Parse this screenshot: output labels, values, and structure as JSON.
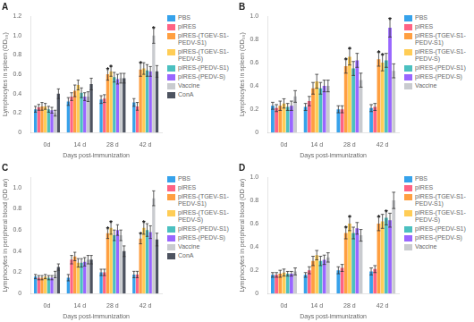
{
  "chart_data": [
    {
      "type": "bar",
      "title": "A",
      "categories": [
        "0d",
        "14 d",
        "28 d",
        "42 d"
      ],
      "x_label": "Days post-immunization",
      "y_label": "Lymphocytes in spleen (OD₀₀)",
      "ylim": [
        0,
        1.2
      ],
      "yticks": [
        0,
        0.2,
        0.4,
        0.6,
        0.8,
        {
          "value": 1,
          "label": "1.0"
        },
        1.2
      ],
      "grid": false,
      "legend": "right",
      "series": [
        {
          "name": "PBS",
          "color": "#36a2eb",
          "values": [
            0.24,
            0.32,
            0.34,
            0.31
          ],
          "errors": [
            0.03,
            0.04,
            0.04,
            0.04
          ]
        },
        {
          "name": "pIRES",
          "color": "#ff6384",
          "values": [
            0.26,
            0.37,
            0.35,
            0.27
          ],
          "errors": [
            0.03,
            0.04,
            0.04,
            0.04
          ]
        },
        {
          "name": "pIRES-(TGEV-S1-\nPEDV-S1)",
          "color": "#ff9f40",
          "values": [
            0.27,
            0.43,
            0.6,
            0.65
          ],
          "errors": [
            0.04,
            0.06,
            0.06,
            0.07
          ]
        },
        {
          "name": "pIRES-(TGEV-S1-\nPEDV-S)",
          "color": "#ffcd56",
          "values": [
            0.27,
            0.49,
            0.63,
            0.66
          ],
          "errors": [
            0.03,
            0.05,
            0.05,
            0.06
          ]
        },
        {
          "name": "pIRES-(PEDV-S1)",
          "color": "#4bc0c0",
          "values": [
            0.24,
            0.41,
            0.57,
            0.64
          ],
          "errors": [
            0.03,
            0.05,
            0.05,
            0.06
          ]
        },
        {
          "name": "pIRES-(PEDV-S)",
          "color": "#9966ff",
          "values": [
            0.23,
            0.37,
            0.55,
            0.63
          ],
          "errors": [
            0.03,
            0.04,
            0.05,
            0.05
          ]
        },
        {
          "name": "Vaccine",
          "color": "#c9cbcf",
          "values": [
            0.2,
            0.37,
            0.56,
            1.0
          ],
          "errors": [
            0.03,
            0.05,
            0.05,
            0.08
          ]
        },
        {
          "name": "ConA",
          "color": "#4d5360",
          "values": [
            0.4,
            0.5,
            0.56,
            0.63
          ],
          "errors": [
            0.05,
            0.06,
            0.05,
            0.06
          ]
        }
      ],
      "annotations": [
        {
          "text": "*",
          "category": "28 d",
          "series": "pIRES-(TGEV-S1-\nPEDV-S1)"
        },
        {
          "text": "*",
          "category": "28 d",
          "series": "pIRES-(TGEV-S1-\nPEDV-S)"
        },
        {
          "text": "*",
          "category": "42 d",
          "series": "pIRES-(TGEV-S1-\nPEDV-S1)"
        },
        {
          "text": "*",
          "category": "42 d",
          "series": "Vaccine"
        }
      ]
    },
    {
      "type": "bar",
      "title": "B",
      "categories": [
        "0d",
        "14 d",
        "28 d",
        "42 d"
      ],
      "x_label": "Days post-immunization",
      "y_label": "Lymphocytes in spleen (OD₀₀)",
      "ylim": [
        0,
        1.0
      ],
      "yticks": [
        0,
        0.2,
        0.4,
        0.6,
        0.8,
        {
          "value": 1,
          "label": "1.0"
        }
      ],
      "grid": false,
      "legend": "right",
      "series": [
        {
          "name": "PBS",
          "color": "#36a2eb",
          "values": [
            0.23,
            0.22,
            0.2,
            0.21
          ],
          "errors": [
            0.03,
            0.03,
            0.03,
            0.03
          ]
        },
        {
          "name": "pIRES",
          "color": "#ff6384",
          "values": [
            0.21,
            0.27,
            0.2,
            0.22
          ],
          "errors": [
            0.03,
            0.04,
            0.03,
            0.03
          ]
        },
        {
          "name": "pIRES-(TGEV-S1-\nPEDV-S1)",
          "color": "#ff9f40",
          "values": [
            0.23,
            0.38,
            0.57,
            0.63
          ],
          "errors": [
            0.04,
            0.05,
            0.06,
            0.06
          ]
        },
        {
          "name": "pIRES-(TGEV-S1-\nPEDV-S)",
          "color": "#ffcd56",
          "values": [
            0.25,
            0.44,
            0.65,
            0.6
          ],
          "errors": [
            0.04,
            0.06,
            0.07,
            0.07
          ]
        },
        {
          "name": "pIRES-(PEDV-S1)",
          "color": "#4bc0c0",
          "values": [
            0.22,
            0.38,
            0.55,
            0.62
          ],
          "errors": [
            0.03,
            0.05,
            0.06,
            0.06
          ]
        },
        {
          "name": "pIRES-(PEDV-S)",
          "color": "#9966ff",
          "values": [
            0.23,
            0.4,
            0.62,
            0.9
          ],
          "errors": [
            0.04,
            0.05,
            0.06,
            0.08
          ]
        },
        {
          "name": "Vaccine",
          "color": "#c9cbcf",
          "values": [
            0.31,
            0.4,
            0.45,
            0.53
          ],
          "errors": [
            0.05,
            0.05,
            0.06,
            0.06
          ]
        }
      ],
      "annotations": [
        {
          "text": "*",
          "category": "28 d",
          "series": "pIRES-(TGEV-S1-\nPEDV-S1)"
        },
        {
          "text": "*",
          "category": "28 d",
          "series": "pIRES-(TGEV-S1-\nPEDV-S)"
        },
        {
          "text": "*",
          "category": "42 d",
          "series": "pIRES-(TGEV-S1-\nPEDV-S1)"
        },
        {
          "text": "*",
          "category": "42 d",
          "series": "pIRES-(TGEV-S1-\nPEDV-S)"
        },
        {
          "text": "*",
          "category": "42 d",
          "series": "pIRES-(PEDV-S)"
        }
      ]
    },
    {
      "type": "bar",
      "title": "C",
      "categories": [
        "0d",
        "14 d",
        "28 d",
        "42 d"
      ],
      "x_label": "Days post-immunization",
      "y_label": "Lymphocytes in peripheral blood (OD av)",
      "ylim": [
        0,
        1.1
      ],
      "yticks": [
        0,
        0.2,
        0.4,
        0.6,
        0.8,
        {
          "value": 1,
          "label": "1.0"
        }
      ],
      "grid": false,
      "legend": "right",
      "series": [
        {
          "name": "PBS",
          "color": "#36a2eb",
          "values": [
            0.16,
            0.15,
            0.2,
            0.18
          ],
          "errors": [
            0.02,
            0.03,
            0.03,
            0.03
          ]
        },
        {
          "name": "pIRES",
          "color": "#ff6384",
          "values": [
            0.15,
            0.32,
            0.2,
            0.18
          ],
          "errors": [
            0.02,
            0.04,
            0.03,
            0.03
          ]
        },
        {
          "name": "pIRES-(TGEV-S1-\nPEDV-S1)",
          "color": "#ff9f40",
          "values": [
            0.15,
            0.35,
            0.57,
            0.52
          ],
          "errors": [
            0.02,
            0.04,
            0.05,
            0.05
          ]
        },
        {
          "name": "pIRES-(TGEV-S1-\nPEDV-S)",
          "color": "#ffcd56",
          "values": [
            0.16,
            0.29,
            0.62,
            0.62
          ],
          "errors": [
            0.02,
            0.04,
            0.06,
            0.06
          ]
        },
        {
          "name": "pIRES-(PEDV-S1)",
          "color": "#4bc0c0",
          "values": [
            0.15,
            0.29,
            0.55,
            0.6
          ],
          "errors": [
            0.02,
            0.04,
            0.05,
            0.06
          ]
        },
        {
          "name": "pIRES-(PEDV-S)",
          "color": "#9966ff",
          "values": [
            0.15,
            0.3,
            0.6,
            0.58
          ],
          "errors": [
            0.02,
            0.04,
            0.05,
            0.06
          ]
        },
        {
          "name": "Vaccine",
          "color": "#c9cbcf",
          "values": [
            0.18,
            0.32,
            0.55,
            0.9
          ],
          "errors": [
            0.03,
            0.04,
            0.05,
            0.07
          ]
        },
        {
          "name": "ConA",
          "color": "#4d5360",
          "values": [
            0.25,
            0.32,
            0.4,
            0.51
          ],
          "errors": [
            0.03,
            0.04,
            0.05,
            0.06
          ]
        }
      ],
      "annotations": [
        {
          "text": "*",
          "category": "28 d",
          "series": "pIRES-(TGEV-S1-\nPEDV-S1)"
        },
        {
          "text": "*",
          "category": "28 d",
          "series": "pIRES-(TGEV-S1-\nPEDV-S)"
        },
        {
          "text": "*",
          "category": "42 d",
          "series": "pIRES-(TGEV-S1-\nPEDV-S1)"
        },
        {
          "text": "*",
          "category": "42 d",
          "series": "pIRES-(TGEV-S1-\nPEDV-S)"
        }
      ]
    },
    {
      "type": "bar",
      "title": "D",
      "categories": [
        "0d",
        "14 d",
        "28 d",
        "42 d"
      ],
      "x_label": "Days post-immunization",
      "y_label": "Lymphocytes in peripheral blood (OD av)",
      "ylim": [
        0,
        1.0
      ],
      "yticks": [
        0,
        0.2,
        0.4,
        0.6,
        0.8,
        {
          "value": 1,
          "label": "1.0"
        }
      ],
      "grid": false,
      "legend": "right",
      "series": [
        {
          "name": "PBS",
          "color": "#36a2eb",
          "values": [
            0.16,
            0.16,
            0.2,
            0.19
          ],
          "errors": [
            0.02,
            0.02,
            0.03,
            0.03
          ]
        },
        {
          "name": "pIRES",
          "color": "#ff6384",
          "values": [
            0.16,
            0.2,
            0.22,
            0.21
          ],
          "errors": [
            0.02,
            0.03,
            0.03,
            0.03
          ]
        },
        {
          "name": "pIRES-(TGEV-S1-\nPEDV-S1)",
          "color": "#ff9f40",
          "values": [
            0.17,
            0.28,
            0.52,
            0.6
          ],
          "errors": [
            0.03,
            0.04,
            0.05,
            0.06
          ]
        },
        {
          "name": "pIRES-(TGEV-S1-\nPEDV-S)",
          "color": "#ffcd56",
          "values": [
            0.18,
            0.33,
            0.6,
            0.62
          ],
          "errors": [
            0.03,
            0.04,
            0.06,
            0.06
          ]
        },
        {
          "name": "pIRES-(PEDV-S1)",
          "color": "#4bc0c0",
          "values": [
            0.17,
            0.28,
            0.52,
            0.65
          ],
          "errors": [
            0.02,
            0.04,
            0.05,
            0.06
          ]
        },
        {
          "name": "pIRES-(PEDV-S)",
          "color": "#9966ff",
          "values": [
            0.17,
            0.29,
            0.56,
            0.63
          ],
          "errors": [
            0.02,
            0.04,
            0.05,
            0.06
          ]
        },
        {
          "name": "Vaccine",
          "color": "#c9cbcf",
          "values": [
            0.19,
            0.31,
            0.5,
            0.8
          ],
          "errors": [
            0.03,
            0.04,
            0.05,
            0.07
          ]
        }
      ],
      "annotations": [
        {
          "text": "*",
          "category": "28 d",
          "series": "pIRES-(TGEV-S1-\nPEDV-S1)"
        },
        {
          "text": "*",
          "category": "28 d",
          "series": "pIRES-(TGEV-S1-\nPEDV-S)"
        },
        {
          "text": "*",
          "category": "42 d",
          "series": "pIRES-(TGEV-S1-\nPEDV-S1)"
        },
        {
          "text": "*",
          "category": "42 d",
          "series": "pIRES-(PEDV-S1)"
        }
      ]
    }
  ]
}
